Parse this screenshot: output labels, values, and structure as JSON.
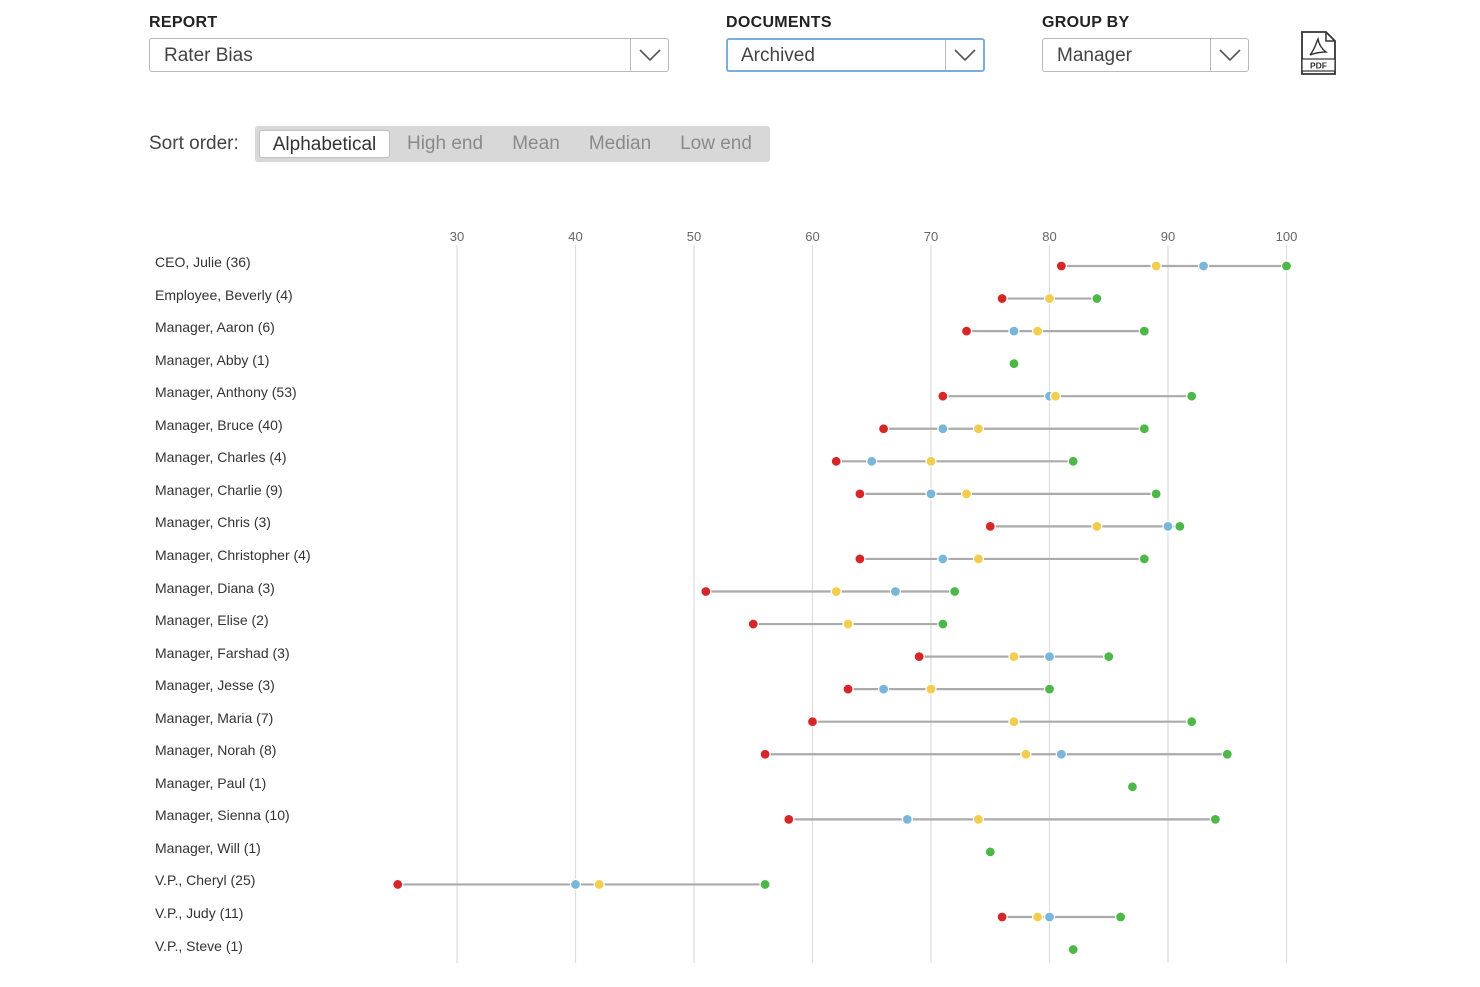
{
  "filters": {
    "report": {
      "label": "REPORT",
      "value": "Rater Bias"
    },
    "documents": {
      "label": "DOCUMENTS",
      "value": "Archived"
    },
    "group_by": {
      "label": "GROUP BY",
      "value": "Manager"
    },
    "pdf_icon": {
      "name": "pdf-icon",
      "text": "PDF"
    }
  },
  "sort": {
    "label": "Sort order:",
    "options": [
      "Alphabetical",
      "High end",
      "Mean",
      "Median",
      "Low end"
    ],
    "active": "Alphabetical"
  },
  "colors": {
    "low": "#d62728",
    "mean": "#7ab6da",
    "median": "#f2cd4e",
    "high": "#4db848",
    "line": "#aaaaaa",
    "grid": "#dddddd"
  },
  "chart_data": {
    "type": "scatter",
    "xlim": [
      25,
      100
    ],
    "xticks": [
      30,
      40,
      50,
      60,
      70,
      80,
      90,
      100
    ],
    "grid": true,
    "rows": [
      {
        "label": "CEO, Julie (36)",
        "low": 81,
        "median": 89,
        "mean": 93,
        "high": 100
      },
      {
        "label": "Employee, Beverly (4)",
        "low": 76,
        "median": 80,
        "mean": 80,
        "high": 84
      },
      {
        "label": "Manager, Aaron (6)",
        "low": 73,
        "mean": 77,
        "median": 79,
        "high": 88
      },
      {
        "label": "Manager, Abby (1)",
        "low": null,
        "mean": null,
        "median": null,
        "high": 77
      },
      {
        "label": "Manager, Anthony (53)",
        "low": 71,
        "mean": 80,
        "median": 80.5,
        "high": 92
      },
      {
        "label": "Manager, Bruce (40)",
        "low": 66,
        "mean": 71,
        "median": 74,
        "high": 88
      },
      {
        "label": "Manager, Charles (4)",
        "low": 62,
        "mean": 65,
        "median": 70,
        "high": 82
      },
      {
        "label": "Manager, Charlie (9)",
        "low": 64,
        "mean": 70,
        "median": 73,
        "high": 89
      },
      {
        "label": "Manager, Chris (3)",
        "low": 75,
        "median": 84,
        "mean": 90,
        "high": 91
      },
      {
        "label": "Manager, Christopher (4)",
        "low": 64,
        "mean": 71,
        "median": 74,
        "high": 88
      },
      {
        "label": "Manager, Diana (3)",
        "low": 51,
        "median": 62,
        "mean": 67,
        "high": 72
      },
      {
        "label": "Manager, Elise (2)",
        "low": 55,
        "median": 63,
        "mean": 63,
        "high": 71
      },
      {
        "label": "Manager, Farshad (3)",
        "low": 69,
        "median": 77,
        "mean": 80,
        "high": 85
      },
      {
        "label": "Manager, Jesse (3)",
        "low": 63,
        "mean": 66,
        "median": 70,
        "high": 80
      },
      {
        "label": "Manager, Maria (7)",
        "low": 60,
        "mean": 77,
        "median": 77,
        "high": 92
      },
      {
        "label": "Manager, Norah (8)",
        "low": 56,
        "median": 78,
        "mean": 81,
        "high": 95
      },
      {
        "label": "Manager, Paul (1)",
        "low": null,
        "mean": null,
        "median": null,
        "high": 87
      },
      {
        "label": "Manager, Sienna (10)",
        "low": 58,
        "mean": 68,
        "median": 74,
        "high": 94
      },
      {
        "label": "Manager, Will (1)",
        "low": null,
        "mean": null,
        "median": null,
        "high": 75
      },
      {
        "label": "V.P., Cheryl (25)",
        "low": 25,
        "mean": 40,
        "median": 42,
        "high": 56
      },
      {
        "label": "V.P., Judy (11)",
        "low": 76,
        "median": 79,
        "mean": 80,
        "high": 86
      },
      {
        "label": "V.P., Steve (1)",
        "low": null,
        "mean": null,
        "median": null,
        "high": 82
      }
    ]
  }
}
